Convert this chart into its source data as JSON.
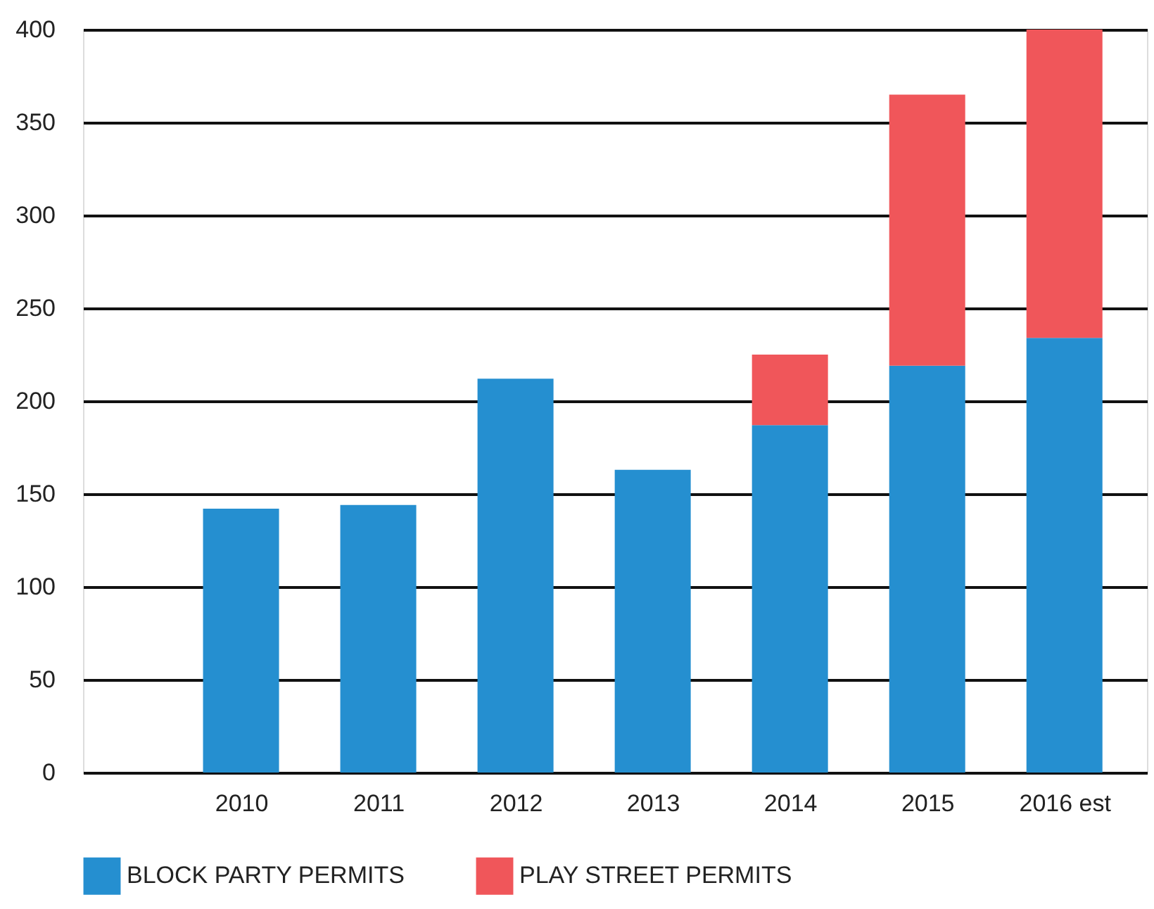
{
  "chart_data": {
    "type": "bar",
    "stacked": true,
    "categories": [
      "2010",
      "2011",
      "2012",
      "2013",
      "2014",
      "2015",
      "2016 est"
    ],
    "series": [
      {
        "name": "BLOCK PARTY PERMITS",
        "color": "#258fd0",
        "values": [
          142,
          144,
          212,
          163,
          187,
          219,
          234
        ]
      },
      {
        "name": "PLAY STREET PERMITS",
        "color": "#f0565a",
        "values": [
          null,
          null,
          null,
          null,
          38,
          146,
          166
        ]
      }
    ],
    "ylim": [
      0,
      400
    ],
    "yticks": [
      0,
      50,
      100,
      150,
      200,
      250,
      300,
      350,
      400
    ],
    "grid": "y",
    "legend": "bottom"
  }
}
